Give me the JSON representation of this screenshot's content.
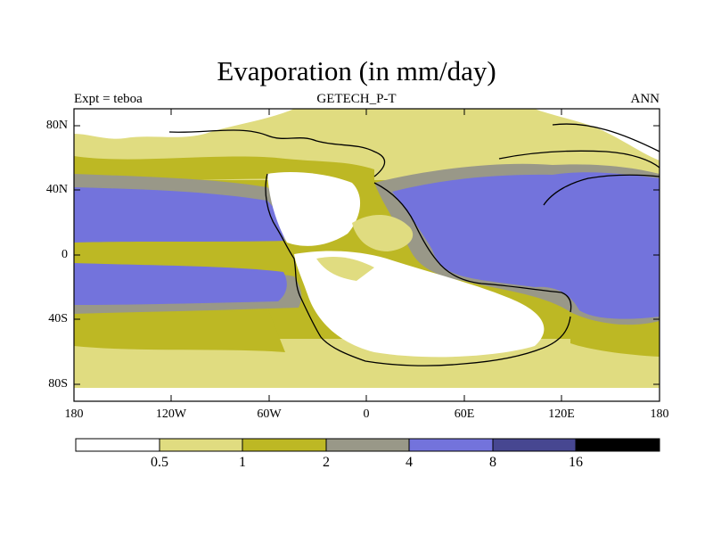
{
  "header": {
    "title": "Evaporation (in mm/day)",
    "left_label": "Expt = teboa",
    "center_label": "GETECH_P-T",
    "right_label": "ANN"
  },
  "axes": {
    "y_ticks": [
      "80N",
      "40N",
      "0",
      "40S",
      "80S"
    ],
    "x_ticks": [
      "180",
      "120W",
      "60W",
      "0",
      "60E",
      "120E",
      "180"
    ]
  },
  "colorbar": {
    "labels": [
      "0.5",
      "1",
      "2",
      "4",
      "8",
      "16"
    ],
    "colors": [
      "#ffffff",
      "#e0dc80",
      "#bdb824",
      "#999888",
      "#7373dc",
      "#474791",
      "#000000"
    ]
  },
  "palette": {
    "very_low": "#ffffff",
    "low": "#e0dc80",
    "mid": "#bdb824",
    "mid_high": "#999888",
    "high": "#7373dc"
  }
}
